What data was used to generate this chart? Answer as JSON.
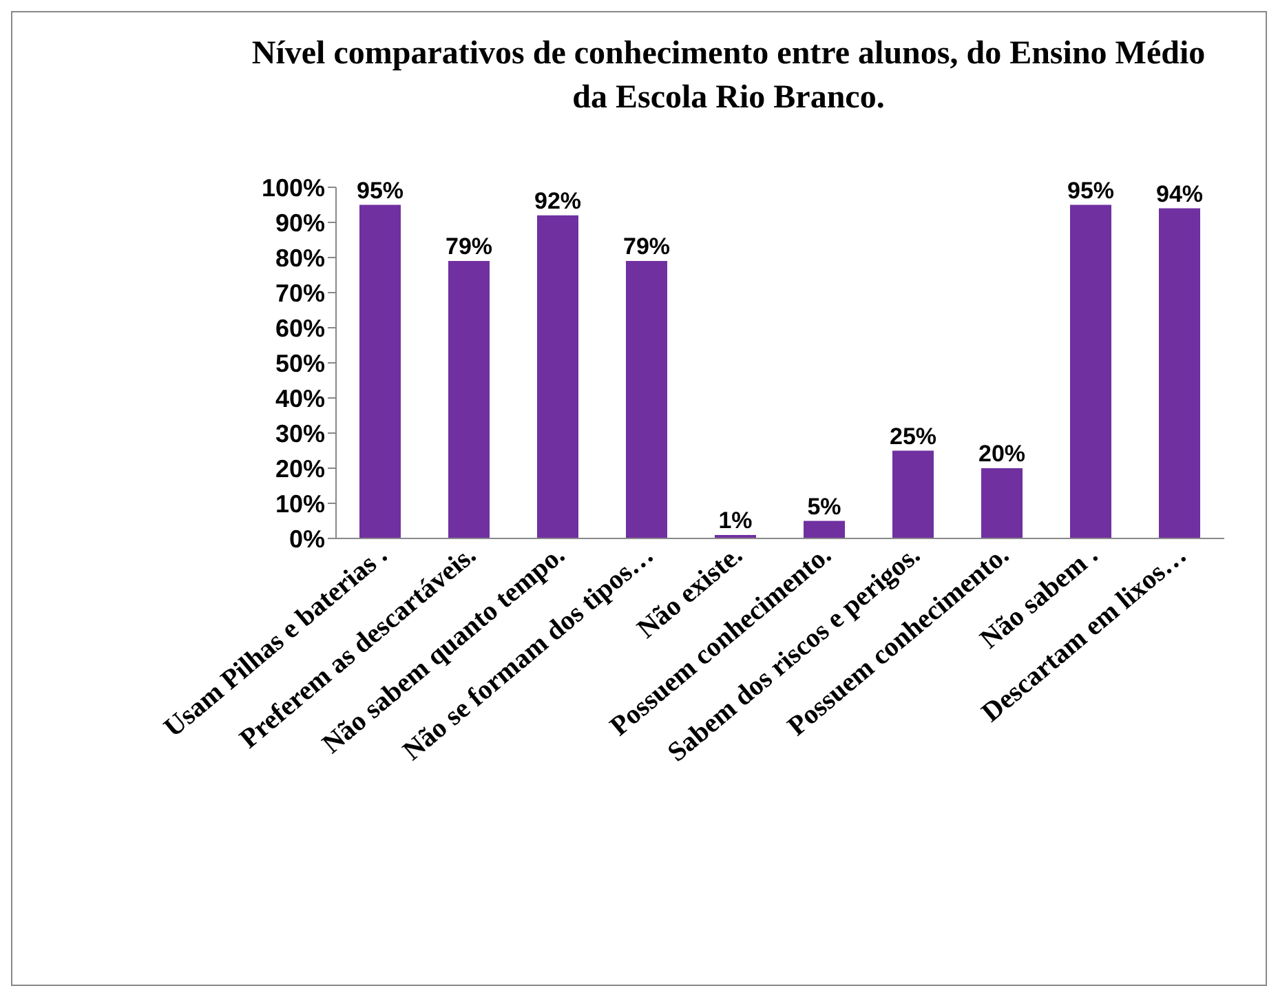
{
  "chart_data": {
    "type": "bar",
    "title": "Nível comparativos de conhecimento entre alunos, do Ensino Médio da Escola Rio Branco.",
    "categories": [
      "Usam Pilhas e baterias .",
      "Preferem as descartáveis.",
      "Não sabem quanto tempo.",
      "Não se formam dos tipos…",
      "Não existe.",
      "Possuem conhecimento.",
      "Sabem dos riscos e perigos.",
      "Possuem conhecimento.",
      "Não sabem .",
      "Descartam em lixos…"
    ],
    "values": [
      95,
      79,
      92,
      79,
      1,
      5,
      25,
      20,
      95,
      94
    ],
    "value_labels": [
      "95%",
      "79%",
      "92%",
      "79%",
      "1%",
      "5%",
      "25%",
      "20%",
      "95%",
      "94%"
    ],
    "color": "#7030a0",
    "ylim": [
      0,
      100
    ],
    "yticks": [
      {
        "value": 0,
        "label": "0%"
      },
      {
        "value": 10,
        "label": "10%"
      },
      {
        "value": 20,
        "label": "20%"
      },
      {
        "value": 30,
        "label": "30%"
      },
      {
        "value": 40,
        "label": "40%"
      },
      {
        "value": 50,
        "label": "50%"
      },
      {
        "value": 60,
        "label": "60%"
      },
      {
        "value": 70,
        "label": "70%"
      },
      {
        "value": 80,
        "label": "80%"
      },
      {
        "value": 90,
        "label": "90%"
      },
      {
        "value": 100,
        "label": "100%"
      }
    ],
    "grid": false,
    "legend": false
  }
}
